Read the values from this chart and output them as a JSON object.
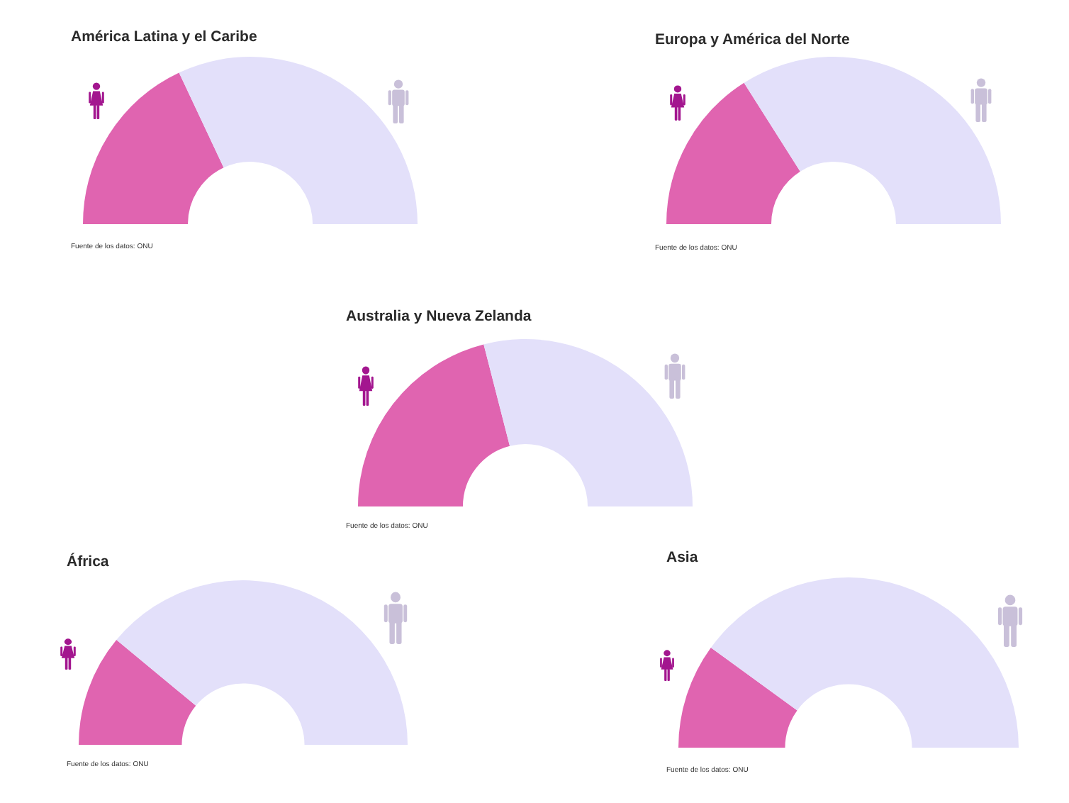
{
  "chart_data": [
    {
      "type": "donut",
      "title": "América Latina y el Caribe",
      "categories": [
        null,
        null
      ],
      "values": [
        36,
        64
      ],
      "colors": [
        "#e064b0",
        "#e3e0fa"
      ],
      "annotations": [
        "Fuente de los datos: ONU"
      ]
    },
    {
      "type": "donut",
      "title": "Europa y América del Norte",
      "categories": [
        null,
        null
      ],
      "values": [
        32,
        68
      ],
      "colors": [
        "#e064b0",
        "#e3e0fa"
      ],
      "annotations": [
        "Fuente de los datos: ONU"
      ]
    },
    {
      "type": "donut",
      "title": "Australia y Nueva Zelanda",
      "categories": [
        null,
        null
      ],
      "values": [
        42,
        58
      ],
      "colors": [
        "#e064b0",
        "#e3e0fa"
      ],
      "annotations": [
        "Fuente de los datos: ONU"
      ]
    },
    {
      "type": "donut",
      "title": "África",
      "categories": [
        null,
        null
      ],
      "values": [
        22,
        78
      ],
      "colors": [
        "#e064b0",
        "#e3e0fa"
      ],
      "annotations": [
        "Fuente de los datos: ONU"
      ]
    },
    {
      "type": "donut",
      "title": "Asia",
      "categories": [
        null,
        null
      ],
      "values": [
        20,
        80
      ],
      "colors": [
        "#e064b0",
        "#e3e0fa"
      ],
      "annotations": [
        "Fuente de los datos: ONU"
      ]
    }
  ]
}
